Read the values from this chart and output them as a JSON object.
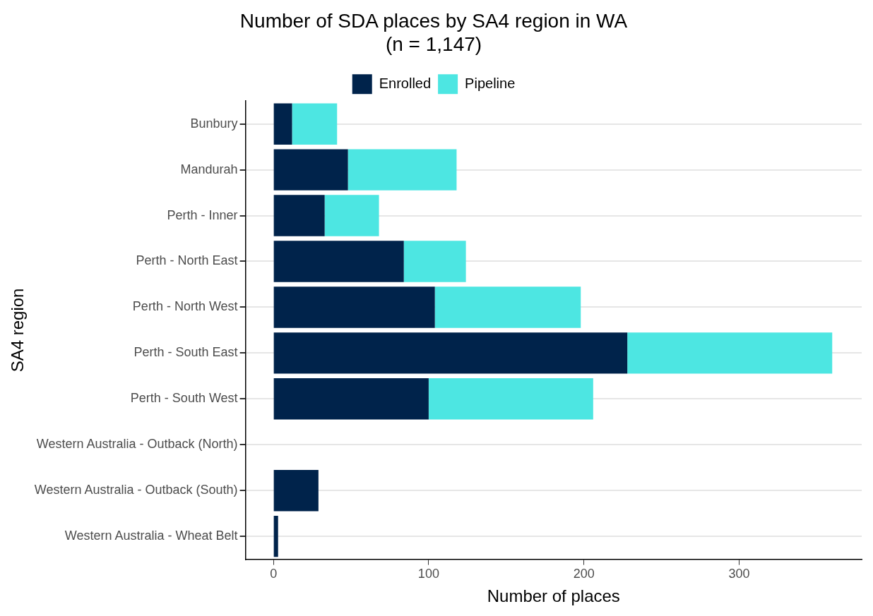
{
  "chart_data": {
    "type": "bar",
    "orientation": "horizontal",
    "stacked": true,
    "title": "Number of SDA places by SA4 region in WA",
    "subtitle": "(n = 1,147)",
    "xlabel": "Number of places",
    "ylabel": "SA4 region",
    "categories": [
      "Bunbury",
      "Mandurah",
      "Perth - Inner",
      "Perth - North East",
      "Perth - North West",
      "Perth - South East",
      "Perth - South West",
      "Western Australia - Outback (North)",
      "Western Australia - Outback (South)",
      "Western Australia - Wheat Belt"
    ],
    "series": [
      {
        "name": "Enrolled",
        "color": "#00234b",
        "values": [
          12,
          48,
          33,
          84,
          104,
          228,
          100,
          0,
          29,
          3
        ]
      },
      {
        "name": "Pipeline",
        "color": "#4de6e2",
        "values": [
          29,
          70,
          35,
          40,
          94,
          132,
          106,
          0,
          0,
          0
        ]
      }
    ],
    "xlim": [
      -18,
      379
    ],
    "xticks": [
      0,
      100,
      200,
      300
    ],
    "grid": "y",
    "legend": "top"
  }
}
